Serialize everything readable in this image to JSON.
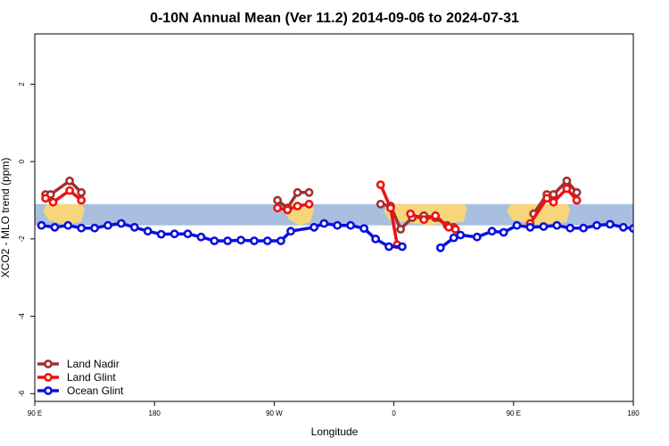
{
  "chart_data": {
    "type": "line",
    "title": "0-10N Annual Mean (Ver 11.2)   2014-09-06 to 2024-07-31",
    "xlabel": "Longitude",
    "ylabel": "XCO2 - MLO trend (ppm)",
    "xlim": [
      90,
      450
    ],
    "ylim": [
      -6.2,
      3.3
    ],
    "x_ticks": [
      {
        "value": 90,
        "label": "90 E"
      },
      {
        "value": 162,
        "label": "180"
      },
      {
        "value": 234,
        "label": "90 W"
      },
      {
        "value": 306,
        "label": "0"
      },
      {
        "value": 378,
        "label": "90 E"
      },
      {
        "value": 450,
        "label": "180"
      }
    ],
    "y_ticks": [
      {
        "value": 2,
        "label": "2"
      },
      {
        "value": 0,
        "label": "0"
      },
      {
        "value": -2,
        "label": "-2"
      },
      {
        "value": -4,
        "label": "-4"
      },
      {
        "value": -6,
        "label": "-6"
      }
    ],
    "background_band": {
      "y_top": -1.1,
      "y_bottom": -1.65,
      "ocean_color": "#a8bfdf",
      "land_color": "#f7d57a"
    },
    "land_regions": [
      {
        "x0": 95,
        "x1": 120
      },
      {
        "x0": 240,
        "x1": 258
      },
      {
        "x0": 300,
        "x1": 350
      },
      {
        "x0": 374,
        "x1": 412
      }
    ],
    "legend_position": "bottom-left",
    "series": [
      {
        "name": "Land Nadir",
        "color": "#a03030",
        "segments": [
          [
            [
              96.5,
              -0.85
            ],
            [
              99.5,
              -0.85
            ],
            [
              111,
              -0.5
            ],
            [
              118,
              -0.8
            ]
          ],
          [
            [
              236,
              -1.0
            ],
            [
              242,
              -1.2
            ],
            [
              248,
              -0.8
            ],
            [
              255,
              -0.8
            ]
          ],
          [
            [
              298,
              -1.1
            ],
            [
              304,
              -1.15
            ],
            [
              310,
              -1.75
            ],
            [
              317,
              -1.45
            ],
            [
              324,
              -1.4
            ],
            [
              331,
              -1.45
            ],
            [
              338,
              -1.65
            ],
            [
              342,
              -1.7
            ]
          ],
          [
            [
              390,
              -1.35
            ],
            [
              398,
              -0.85
            ],
            [
              402,
              -0.85
            ],
            [
              410,
              -0.5
            ],
            [
              416,
              -0.8
            ]
          ]
        ]
      },
      {
        "name": "Land Glint",
        "color": "#ee1111",
        "segments": [
          [
            [
              96.5,
              -0.95
            ],
            [
              101,
              -1.05
            ],
            [
              111,
              -0.75
            ],
            [
              118,
              -1.0
            ]
          ],
          [
            [
              236,
              -1.2
            ],
            [
              242,
              -1.25
            ],
            [
              248,
              -1.15
            ],
            [
              255,
              -1.1
            ]
          ],
          [
            [
              298,
              -0.6
            ],
            [
              304,
              -1.2
            ],
            [
              308,
              -2.15
            ]
          ],
          [
            [
              316,
              -1.35
            ],
            [
              324,
              -1.5
            ],
            [
              331,
              -1.4
            ],
            [
              339,
              -1.7
            ],
            [
              343,
              -1.75
            ]
          ],
          [
            [
              388,
              -1.6
            ],
            [
              398,
              -0.95
            ],
            [
              402,
              -1.05
            ],
            [
              410,
              -0.7
            ],
            [
              416,
              -1.0
            ]
          ]
        ]
      },
      {
        "name": "Ocean Glint",
        "color": "#0a10e0",
        "segments": [
          [
            [
              94,
              -1.65
            ],
            [
              102,
              -1.7
            ],
            [
              110,
              -1.65
            ],
            [
              118,
              -1.72
            ],
            [
              126,
              -1.72
            ],
            [
              134,
              -1.65
            ],
            [
              142,
              -1.6
            ],
            [
              150,
              -1.7
            ],
            [
              158,
              -1.8
            ],
            [
              166,
              -1.88
            ],
            [
              174,
              -1.87
            ],
            [
              182,
              -1.87
            ],
            [
              190,
              -1.95
            ],
            [
              198,
              -2.05
            ],
            [
              206,
              -2.05
            ],
            [
              214,
              -2.03
            ],
            [
              222,
              -2.05
            ],
            [
              230,
              -2.05
            ],
            [
              238,
              -2.05
            ],
            [
              244,
              -1.8
            ],
            [
              258,
              -1.7
            ],
            [
              264,
              -1.6
            ],
            [
              272,
              -1.65
            ],
            [
              280,
              -1.65
            ],
            [
              288,
              -1.73
            ],
            [
              295,
              -2.0
            ],
            [
              303,
              -2.2
            ],
            [
              311,
              -2.2
            ]
          ],
          [
            [
              334,
              -2.23
            ],
            [
              342,
              -1.97
            ],
            [
              346,
              -1.9
            ],
            [
              356,
              -1.95
            ],
            [
              365,
              -1.8
            ],
            [
              372,
              -1.83
            ],
            [
              380,
              -1.65
            ],
            [
              388,
              -1.7
            ],
            [
              396,
              -1.68
            ],
            [
              404,
              -1.65
            ],
            [
              412,
              -1.72
            ],
            [
              420,
              -1.72
            ],
            [
              428,
              -1.65
            ],
            [
              436,
              -1.62
            ],
            [
              444,
              -1.7
            ],
            [
              450,
              -1.73
            ]
          ]
        ]
      }
    ]
  }
}
